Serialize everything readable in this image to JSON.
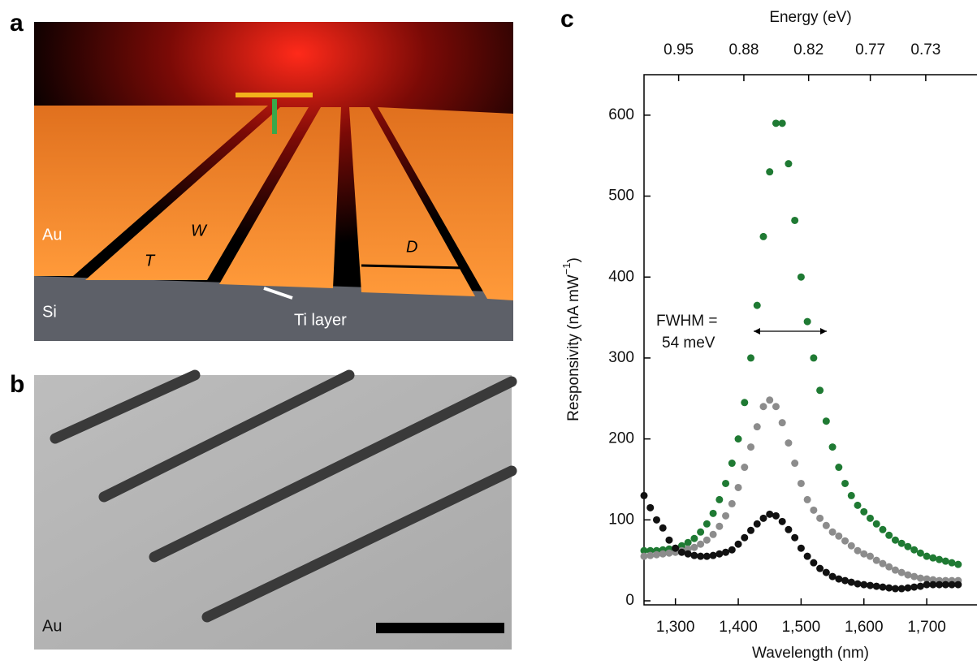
{
  "panel_labels": [
    "a",
    "b",
    "c"
  ],
  "panel_a": {
    "labels": [
      "Au",
      "Si",
      "T",
      "W",
      "D",
      "Ti layer"
    ]
  },
  "panel_b": {
    "labels": [
      "Au"
    ]
  },
  "chart_data": {
    "type": "scatter",
    "xlabel": "Wavelength (nm)",
    "ylabel": [
      "Responsivity (nA mW",
      "−1",
      ")"
    ],
    "x2label": "Energy (eV)",
    "annotation": [
      "FWHM =",
      "54 meV"
    ],
    "xlim": [
      1250,
      1780
    ],
    "ylim": [
      -5,
      650
    ],
    "xticks": [
      {
        "value": 1300,
        "label": "1,300"
      },
      {
        "value": 1400,
        "label": "1,400"
      },
      {
        "value": 1500,
        "label": "1,500"
      },
      {
        "value": 1600,
        "label": "1,600"
      },
      {
        "value": 1700,
        "label": "1,700"
      }
    ],
    "yticks": [
      0,
      100,
      200,
      300,
      400,
      500,
      600
    ],
    "x2ticks": [
      0.95,
      0.88,
      0.82,
      0.77,
      0.73
    ],
    "x": [
      1250,
      1260,
      1270,
      1280,
      1290,
      1300,
      1310,
      1320,
      1330,
      1340,
      1350,
      1360,
      1370,
      1380,
      1390,
      1400,
      1410,
      1420,
      1430,
      1440,
      1450,
      1460,
      1470,
      1480,
      1490,
      1500,
      1510,
      1520,
      1530,
      1540,
      1550,
      1560,
      1570,
      1580,
      1590,
      1600,
      1610,
      1620,
      1630,
      1640,
      1650,
      1660,
      1670,
      1680,
      1690,
      1700,
      1710,
      1720,
      1730,
      1740,
      1750
    ],
    "series": [
      {
        "color": "#1f7a33",
        "values": [
          62,
          62,
          62,
          63,
          64,
          65,
          68,
          72,
          77,
          85,
          95,
          108,
          125,
          145,
          170,
          200,
          245,
          300,
          365,
          450,
          530,
          590,
          590,
          540,
          470,
          400,
          345,
          300,
          260,
          222,
          190,
          165,
          145,
          130,
          118,
          110,
          102,
          95,
          88,
          81,
          75,
          71,
          67,
          63,
          59,
          55,
          53,
          51,
          49,
          47,
          45
        ]
      },
      {
        "color": "#8c8c8c",
        "values": [
          55,
          56,
          57,
          58,
          59,
          60,
          62,
          64,
          66,
          70,
          75,
          82,
          92,
          105,
          120,
          140,
          165,
          190,
          215,
          240,
          248,
          240,
          220,
          195,
          170,
          145,
          125,
          112,
          102,
          93,
          85,
          80,
          74,
          68,
          62,
          58,
          55,
          50,
          46,
          42,
          38,
          35,
          32,
          30,
          28,
          27,
          26,
          25,
          25,
          25,
          25
        ]
      },
      {
        "color": "#111111",
        "values": [
          130,
          115,
          100,
          90,
          75,
          65,
          60,
          58,
          56,
          55,
          55,
          56,
          58,
          60,
          63,
          70,
          78,
          87,
          95,
          102,
          107,
          105,
          98,
          88,
          78,
          65,
          55,
          47,
          40,
          35,
          30,
          27,
          25,
          23,
          21,
          20,
          19,
          18,
          17,
          16,
          15,
          15,
          16,
          17,
          18,
          20,
          20,
          20,
          20,
          20,
          20
        ]
      }
    ]
  }
}
